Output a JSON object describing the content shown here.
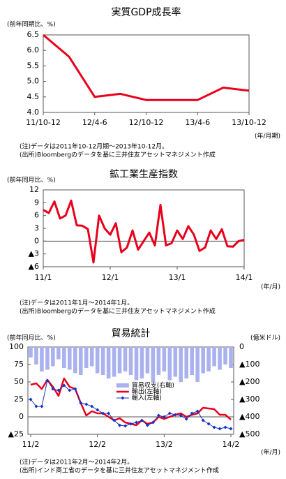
{
  "chart_data": [
    {
      "type": "line",
      "title": "実質GDP成長率",
      "y_label": "(前年同期比、%)",
      "x_unit": "(年/月期)",
      "categories": [
        "11/10-12",
        null,
        "12/4-6",
        null,
        "12/10-12",
        null,
        "13/4-6",
        null,
        "13/10-12"
      ],
      "values": [
        6.5,
        5.8,
        4.5,
        4.6,
        4.4,
        4.4,
        4.4,
        4.8,
        4.7
      ],
      "color": "#e8001c",
      "ylim": [
        4.0,
        6.5
      ],
      "yticks": [
        {
          "value": 4,
          "label": "4.0"
        },
        4.5,
        {
          "value": 5,
          "label": "5.0"
        },
        5.5,
        {
          "value": 6,
          "label": "6.0"
        },
        6.5
      ],
      "notes": [
        "(注)データは2011年10-12月期～2013年10-12月。",
        "(出所)Bloombergのデータを基に三井住友アセットマネジメント作成"
      ]
    },
    {
      "type": "line",
      "title": "鉱工業生産指数",
      "y_label": "(前年同月比、%)",
      "x_unit": "(年/月)",
      "categories": [
        "11/1",
        null,
        null,
        null,
        null,
        null,
        null,
        null,
        null,
        null,
        null,
        null,
        "12/1",
        null,
        null,
        null,
        null,
        null,
        null,
        null,
        null,
        null,
        null,
        null,
        "13/1",
        null,
        null,
        null,
        null,
        null,
        null,
        null,
        null,
        null,
        null,
        null,
        "14/1"
      ],
      "values": [
        7.3,
        6.6,
        9.3,
        5.3,
        6.0,
        9.5,
        3.7,
        3.6,
        2.8,
        -5.0,
        6.0,
        3.0,
        1.5,
        4.2,
        -2.6,
        -1.5,
        2.5,
        -2.0,
        0.0,
        2.0,
        -1.0,
        8.5,
        -1.0,
        -0.5,
        2.5,
        0.5,
        3.5,
        1.5,
        -2.3,
        -1.5,
        2.5,
        0.5,
        2.8,
        -1.2,
        -1.3,
        0.0,
        0.3
      ],
      "color": "#e8001c",
      "ylim": [
        -6,
        12
      ],
      "yticks": [
        {
          "value": -6,
          "label": "▲6"
        },
        {
          "value": -3,
          "label": "▲3"
        },
        0,
        3,
        6,
        9,
        12
      ],
      "notes": [
        "(注)データは2011年1月～2014年1月。",
        "(出所)Bloombergのデータを基に三井住友アセットマネジメント作成"
      ]
    },
    {
      "type": "bar-line",
      "title": "貿易統計",
      "y_label": "(前年同月比、%)",
      "y2_label": "(億米ドル)",
      "x_unit": "(年/月)",
      "categories": [
        "11/2",
        null,
        null,
        null,
        null,
        null,
        null,
        null,
        null,
        null,
        null,
        null,
        "12/2",
        null,
        null,
        null,
        null,
        null,
        null,
        null,
        null,
        null,
        null,
        null,
        "13/2",
        null,
        null,
        null,
        null,
        null,
        null,
        null,
        null,
        null,
        null,
        null,
        "14/2"
      ],
      "series": [
        {
          "name": "貿易収支(右軸)",
          "type": "bar",
          "axis": "y2",
          "color": "#a9b1ee",
          "values": [
            -60,
            -100,
            -140,
            -130,
            -110,
            -70,
            -120,
            -130,
            -150,
            -160,
            -120,
            -110,
            -150,
            -160,
            -180,
            -170,
            -150,
            -140,
            -160,
            -190,
            -180,
            -150,
            -200,
            -160,
            -140,
            -190,
            -170,
            -200,
            -180,
            -160,
            -200,
            -150,
            -140,
            -110,
            -130,
            -100,
            -120
          ]
        },
        {
          "name": "輸出(左軸)",
          "type": "line",
          "color": "#e8001c",
          "values": [
            46,
            48,
            40,
            53,
            43,
            30,
            55,
            43,
            40,
            20,
            2,
            8,
            5,
            5,
            0,
            -5,
            -2,
            -8,
            -10,
            -12,
            -5,
            -10,
            -8,
            0,
            -3,
            0,
            3,
            5,
            0,
            3,
            5,
            13,
            12,
            11,
            3,
            3,
            -4
          ]
        },
        {
          "name": "輸入(左軸)",
          "type": "line",
          "marker": true,
          "color": "#1432c8",
          "values": [
            25,
            15,
            15,
            52,
            40,
            38,
            45,
            38,
            40,
            20,
            18,
            15,
            10,
            5,
            5,
            -5,
            -12,
            -13,
            -10,
            -8,
            -5,
            -12,
            -8,
            2,
            0,
            5,
            3,
            2,
            -3,
            5,
            8,
            -5,
            -10,
            -15,
            -17,
            -15,
            -17
          ]
        }
      ],
      "ylim": [
        -25,
        100
      ],
      "yticks": [
        {
          "value": -25,
          "label": "▲25"
        },
        0,
        25,
        50,
        75,
        100
      ],
      "y2lim": [
        -500,
        0
      ],
      "y2ticks": [
        {
          "value": -500,
          "label": "▲500"
        },
        {
          "value": -400,
          "label": "▲400"
        },
        {
          "value": -300,
          "label": "▲300"
        },
        {
          "value": -200,
          "label": "▲200"
        },
        {
          "value": -100,
          "label": "▲100"
        },
        0
      ],
      "legend": "center",
      "notes": [
        "(注)データは2011年2月～2014年2月。",
        "(出所)インド商工省のデータを基に三井住友アセットマネジメント作成"
      ]
    }
  ]
}
